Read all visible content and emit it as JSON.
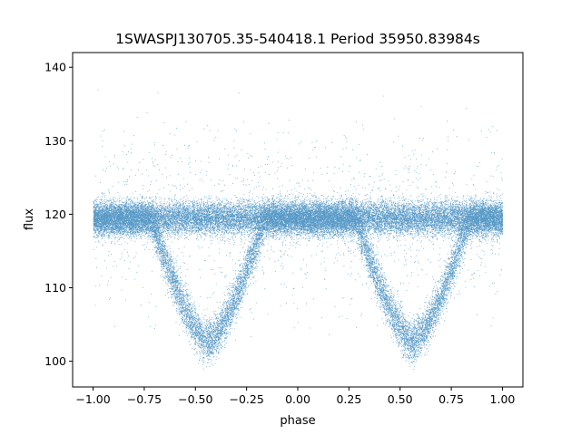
{
  "chart_data": {
    "type": "scatter",
    "title": "1SWASPJ130705.35-540418.1 Period 35950.83984s",
    "xlabel": "phase",
    "ylabel": "flux",
    "xlim": [
      -1.1,
      1.1
    ],
    "ylim": [
      96.5,
      142.0
    ],
    "xticks": [
      -1.0,
      -0.75,
      -0.5,
      -0.25,
      0.0,
      0.25,
      0.5,
      0.75,
      1.0
    ],
    "xtick_labels": [
      "−1.00",
      "−0.75",
      "−0.50",
      "−0.25",
      "0.00",
      "0.25",
      "0.50",
      "0.75",
      "1.00"
    ],
    "yticks": [
      100,
      110,
      120,
      130,
      140
    ],
    "ytick_labels": [
      "100",
      "110",
      "120",
      "130",
      "140"
    ],
    "grid": false,
    "point_color": "#1f77b4",
    "series": [
      {
        "x_range": [
          -1.0,
          1.0
        ],
        "baseline_flux": 119.5,
        "eclipse_centers": [
          -0.44,
          0.56
        ],
        "eclipse_min_flux": 102.5,
        "eclipse_half_width": 0.28,
        "approx_point_count": 40000
      }
    ]
  }
}
